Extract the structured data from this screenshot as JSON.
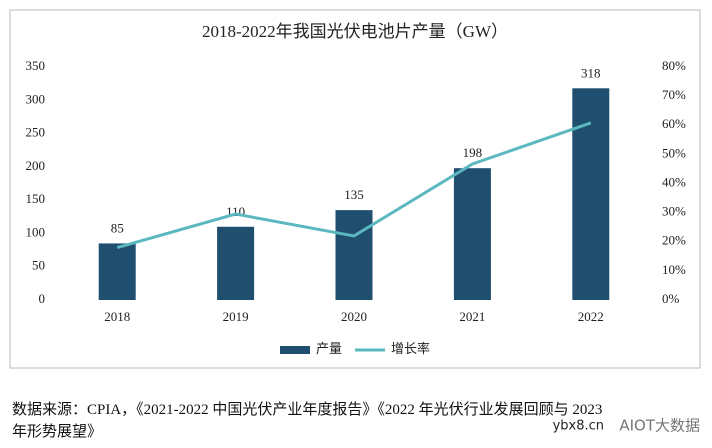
{
  "chart_data": {
    "type": "bar_line",
    "title": "2018-2022年我国光伏电池片产量（GW）",
    "categories": [
      "2018",
      "2019",
      "2020",
      "2021",
      "2022"
    ],
    "series": [
      {
        "name": "产量",
        "color": "#1f4e6e",
        "type": "bar",
        "values": [
          85,
          110,
          135,
          198,
          318
        ]
      },
      {
        "name": "增长率",
        "color": "#5bb8c0",
        "type": "line",
        "axis": "y2",
        "values": [
          18,
          29.5,
          22,
          46.7,
          60.8
        ]
      }
    ],
    "ylim": [
      0,
      350
    ],
    "yticks": [
      0,
      50,
      100,
      150,
      200,
      250,
      300,
      350
    ],
    "y2lim": [
      0,
      80
    ],
    "y2ticks": [
      {
        "value": 0,
        "label": "0%"
      },
      {
        "value": 10,
        "label": "10%"
      },
      {
        "value": 20,
        "label": "20%"
      },
      {
        "value": 30,
        "label": "30%"
      },
      {
        "value": 40,
        "label": "40%"
      },
      {
        "value": 50,
        "label": "50%"
      },
      {
        "value": 60,
        "label": "60%"
      },
      {
        "value": 70,
        "label": "70%"
      },
      {
        "value": 80,
        "label": "80%"
      }
    ],
    "grid": false,
    "legend": "bottom"
  },
  "source": {
    "lines": [
      "数据来源：CPIA，《2021-2022 中国光伏产业年度报告》《2022 年光伏行业发展回顾与 2023",
      "年形势展望》"
    ]
  },
  "watermark": {
    "site": "ybx8.cn",
    "account": "AIOT大数据"
  }
}
